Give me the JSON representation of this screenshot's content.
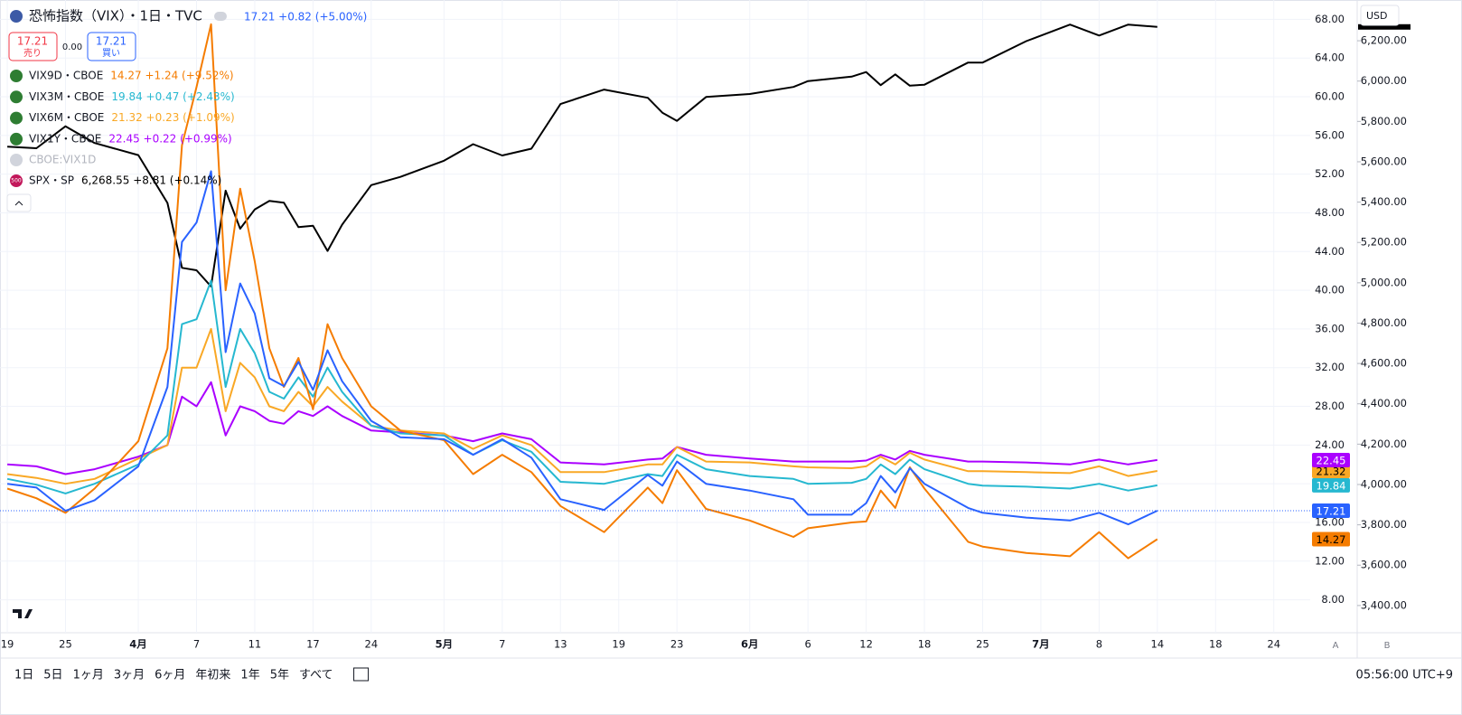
{
  "chart_data": {
    "type": "line",
    "x": [
      0,
      2,
      4,
      6,
      9,
      11,
      12,
      13,
      14,
      15,
      16,
      17,
      18,
      19,
      20,
      21,
      22,
      23,
      25,
      27,
      30,
      32,
      34,
      36,
      38,
      41,
      44,
      45,
      46,
      48,
      51,
      54,
      55,
      58,
      59,
      60,
      61,
      62,
      63,
      66,
      67,
      70,
      73,
      75,
      77,
      79
    ],
    "xlim": [
      -0.5,
      89.5
    ],
    "xticks": [
      {
        "value": 0,
        "label": "19"
      },
      {
        "value": 4,
        "label": "25"
      },
      {
        "value": 9,
        "label": "4月"
      },
      {
        "value": 13,
        "label": "7"
      },
      {
        "value": 17,
        "label": "11"
      },
      {
        "value": 21,
        "label": "17"
      },
      {
        "value": 25,
        "label": "24"
      },
      {
        "value": 30,
        "label": "5月"
      },
      {
        "value": 34,
        "label": "7"
      },
      {
        "value": 38,
        "label": "13"
      },
      {
        "value": 42,
        "label": "19"
      },
      {
        "value": 46,
        "label": "23"
      },
      {
        "value": 51,
        "label": "6月"
      },
      {
        "value": 55,
        "label": "6"
      },
      {
        "value": 59,
        "label": "12"
      },
      {
        "value": 63,
        "label": "18"
      },
      {
        "value": 67,
        "label": "25"
      },
      {
        "value": 71,
        "label": "7月"
      },
      {
        "value": 75,
        "label": "8"
      },
      {
        "value": 79,
        "label": "14"
      },
      {
        "value": 83,
        "label": "18"
      },
      {
        "value": 87,
        "label": "24"
      }
    ],
    "ylim": [
      4.6,
      70
    ],
    "yticks": [
      {
        "value": 8,
        "label": "8.00"
      },
      {
        "value": 12,
        "label": "12.00"
      },
      {
        "value": 16,
        "label": "16.00"
      },
      {
        "value": 20,
        "label": "20.00"
      },
      {
        "value": 24,
        "label": "24.00"
      },
      {
        "value": 28,
        "label": "28.00"
      },
      {
        "value": 32,
        "label": "32.00"
      },
      {
        "value": 36,
        "label": "36.00"
      },
      {
        "value": 40,
        "label": "40.00"
      },
      {
        "value": 44,
        "label": "44.00"
      },
      {
        "value": 48,
        "label": "48.00"
      },
      {
        "value": 52,
        "label": "52.00"
      },
      {
        "value": 56,
        "label": "56.00"
      },
      {
        "value": 60,
        "label": "60.00"
      },
      {
        "value": 64,
        "label": "64.00"
      },
      {
        "value": 68,
        "label": "68.00"
      }
    ],
    "y2lim": [
      3265,
      6402
    ],
    "y2ticks": [
      {
        "value": 3400,
        "label": "3,400.00"
      },
      {
        "value": 3600,
        "label": "3,600.00"
      },
      {
        "value": 3800,
        "label": "3,800.00"
      },
      {
        "value": 4000,
        "label": "4,000.00"
      },
      {
        "value": 4200,
        "label": "4,200.00"
      },
      {
        "value": 4400,
        "label": "4,400.00"
      },
      {
        "value": 4600,
        "label": "4,600.00"
      },
      {
        "value": 4800,
        "label": "4,800.00"
      },
      {
        "value": 5000,
        "label": "5,000.00"
      },
      {
        "value": 5200,
        "label": "5,200.00"
      },
      {
        "value": 5400,
        "label": "5,400.00"
      },
      {
        "value": 5600,
        "label": "5,600.00"
      },
      {
        "value": 5800,
        "label": "5,800.00"
      },
      {
        "value": 6000,
        "label": "6,000.00"
      },
      {
        "value": 6200,
        "label": "6,200.00"
      }
    ],
    "grid": true,
    "series": [
      {
        "name": "恐怖指数（VIX）・1日・TVC",
        "quote": "17.21 +0.82 (+5.00%)",
        "color": "#2962ff",
        "values": [
          20.0,
          19.6,
          17.2,
          18.3,
          21.8,
          30.0,
          45.0,
          47.0,
          52.3,
          33.6,
          40.7,
          37.6,
          30.9,
          30.1,
          32.6,
          29.7,
          33.8,
          30.6,
          26.5,
          24.8,
          24.6,
          23.0,
          24.6,
          22.7,
          18.4,
          17.3,
          20.9,
          19.8,
          22.3,
          20.0,
          19.3,
          18.4,
          16.8,
          16.8,
          18.0,
          20.8,
          19.1,
          21.6,
          20.0,
          17.5,
          17.0,
          16.5,
          16.2,
          17.0,
          15.8,
          17.21
        ]
      },
      {
        "name": "VIX9D・CBOE",
        "quote": "14.27 +1.24 (+9.52%)",
        "color": "#f57c00",
        "values": [
          19.5,
          18.5,
          17.0,
          19.5,
          24.4,
          34.0,
          55.0,
          61.0,
          67.5,
          40.0,
          50.5,
          43.0,
          34.0,
          30.0,
          33.0,
          27.7,
          36.5,
          33.0,
          28.0,
          25.5,
          24.5,
          21.0,
          23.0,
          21.2,
          17.7,
          15.0,
          19.6,
          18.0,
          21.4,
          17.4,
          16.2,
          14.5,
          15.4,
          16.0,
          16.1,
          19.3,
          17.5,
          21.7,
          19.5,
          14.0,
          13.5,
          12.85,
          12.5,
          15.0,
          12.3,
          14.27
        ]
      },
      {
        "name": "VIX3M・CBOE",
        "quote": "19.84 +0.47 (+2.43%)",
        "color": "#26b8d0",
        "values": [
          20.5,
          19.9,
          19.0,
          20.0,
          22.0,
          25.0,
          36.5,
          37.0,
          41.0,
          30.0,
          36.0,
          33.5,
          29.5,
          28.8,
          31.0,
          29.0,
          32.0,
          29.5,
          26.0,
          25.2,
          25.0,
          23.0,
          24.5,
          23.3,
          20.2,
          20.0,
          21.0,
          20.8,
          23.0,
          21.5,
          20.8,
          20.5,
          20.0,
          20.1,
          20.5,
          22.0,
          21.0,
          22.5,
          21.5,
          20.0,
          19.8,
          19.7,
          19.5,
          20.0,
          19.3,
          19.84
        ]
      },
      {
        "name": "VIX6M・CBOE",
        "quote": "21.32 +0.23 (+1.09%)",
        "color": "#f9a825",
        "values": [
          21.0,
          20.6,
          20.0,
          20.5,
          22.6,
          24.0,
          32.0,
          32.0,
          36.0,
          27.5,
          32.5,
          31.0,
          28.0,
          27.5,
          29.5,
          28.0,
          30.0,
          28.5,
          26.0,
          25.5,
          25.2,
          23.6,
          25.0,
          24.0,
          21.2,
          21.2,
          22.0,
          22.0,
          23.8,
          22.3,
          22.2,
          21.8,
          21.7,
          21.6,
          21.8,
          22.8,
          22.0,
          23.2,
          22.5,
          21.3,
          21.3,
          21.2,
          21.1,
          21.8,
          20.8,
          21.32
        ]
      },
      {
        "name": "VIX1Y・CBOE",
        "quote": "22.45 +0.22 (+0.99%)",
        "color": "#aa00ff",
        "values": [
          22.0,
          21.8,
          21.0,
          21.5,
          22.8,
          24.0,
          29.0,
          28.0,
          30.5,
          25.0,
          28.0,
          27.5,
          26.5,
          26.2,
          27.5,
          27.0,
          28.0,
          27.0,
          25.5,
          25.3,
          25.0,
          24.4,
          25.2,
          24.6,
          22.2,
          22.0,
          22.5,
          22.6,
          23.8,
          23.0,
          22.6,
          22.3,
          22.3,
          22.3,
          22.4,
          23.0,
          22.5,
          23.4,
          23.0,
          22.3,
          22.3,
          22.2,
          22.0,
          22.5,
          22.0,
          22.45
        ]
      },
      {
        "name": "SPX・SP",
        "quote": "6,268.55 +8.81 (+0.14%)",
        "color": "#000000",
        "axis": "y2",
        "values": [
          5675,
          5667,
          5776,
          5693,
          5633,
          5396,
          5074,
          5062,
          4982,
          5457,
          5268,
          5363,
          5406,
          5397,
          5276,
          5283,
          5158,
          5288,
          5484,
          5525,
          5605,
          5687,
          5631,
          5665,
          5886,
          5958,
          5917,
          5843,
          5803,
          5921,
          5936,
          5971,
          6000,
          6022,
          6045,
          5980,
          6033,
          5977,
          5982,
          6092,
          6092,
          6198,
          6280,
          6226,
          6280,
          6268.55
        ]
      }
    ]
  },
  "ui": {
    "sell": {
      "price": "17.21",
      "label": "売り"
    },
    "spread": "0.00",
    "buy": {
      "price": "17.21",
      "label": "買い"
    },
    "hidden_series_name": "CBOE:VIX1D",
    "spx_icon": "500",
    "currency": "USD",
    "ranges": [
      "1日",
      "5日",
      "1ヶ月",
      "3ヶ月",
      "6ヶ月",
      "年初来",
      "1年",
      "5年",
      "すべて"
    ],
    "clock": "05:56:00 UTC+9",
    "scale_buttons": [
      "A",
      "B"
    ]
  }
}
